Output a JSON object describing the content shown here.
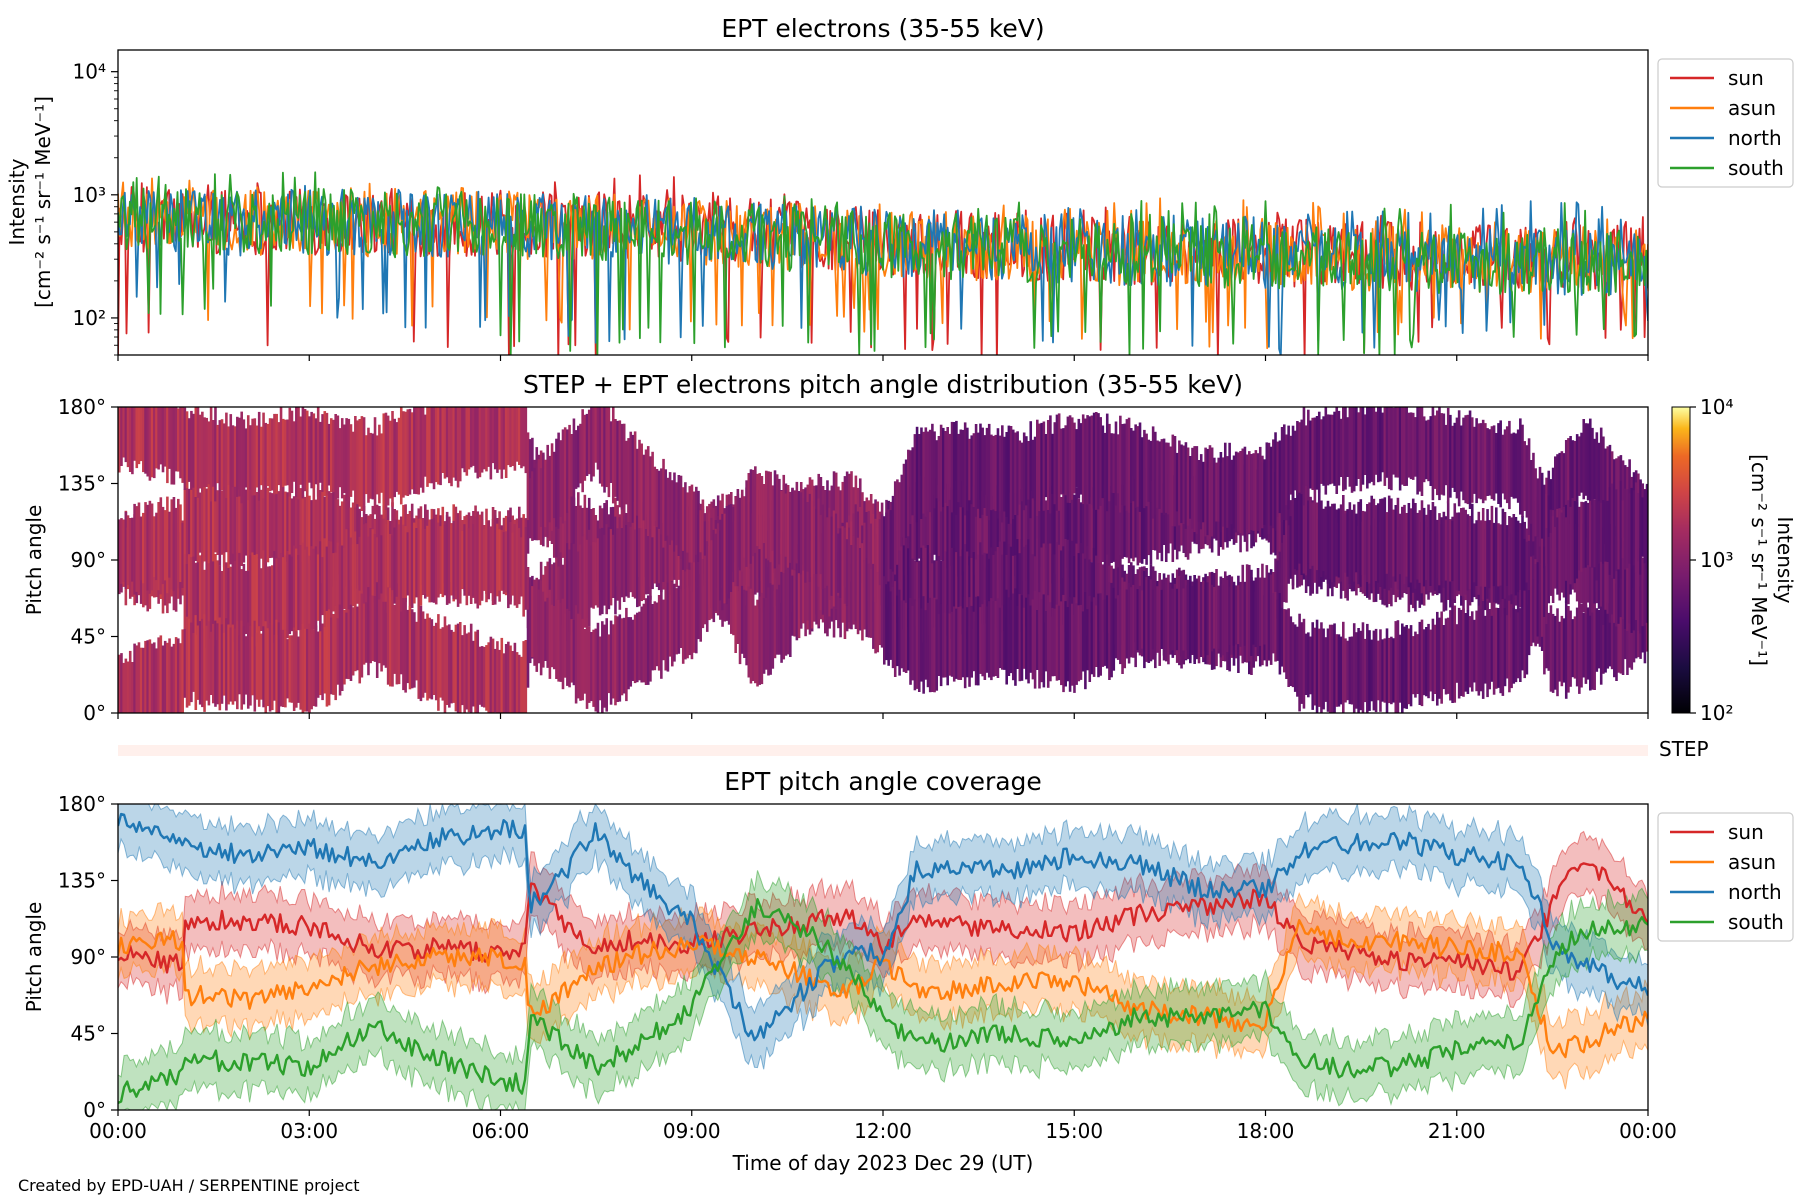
{
  "credit": "Created by EPD-UAH / SERPENTINE project",
  "colors": {
    "sun": "#d62728",
    "asun": "#ff7f0e",
    "north": "#1f77b4",
    "south": "#2ca02c",
    "step_band": "#fff0ec"
  },
  "chart_data": [
    {
      "type": "line",
      "title": "EPT electrons (35-55 keV)",
      "ylabel_lines": [
        "Intensity",
        "[cm⁻² s⁻¹ sr⁻¹ MeV⁻¹]"
      ],
      "yscale": "log",
      "ylim": [
        50,
        15000
      ],
      "yticks": [
        {
          "v": 100,
          "label": "10²"
        },
        {
          "v": 1000,
          "label": "10³"
        },
        {
          "v": 10000,
          "label": "10⁴"
        }
      ],
      "xlim_hours": [
        0,
        24
      ],
      "legend": "outside-right",
      "series": [
        {
          "name": "sun",
          "color": "#d62728",
          "x_hours": [
            0,
            2,
            4,
            6,
            8,
            10,
            12,
            14,
            16,
            18,
            20,
            22,
            24
          ],
          "typical": [
            650,
            620,
            600,
            580,
            560,
            500,
            420,
            380,
            350,
            340,
            320,
            310,
            300
          ],
          "min": [
            60,
            60,
            60,
            50,
            50,
            60,
            70,
            50,
            50,
            50,
            60,
            60,
            60
          ],
          "max": [
            1300,
            1300,
            1200,
            1200,
            1600,
            1200,
            900,
            800,
            900,
            800,
            700,
            700,
            700
          ]
        },
        {
          "name": "asun",
          "color": "#ff7f0e",
          "x_hours": [
            0,
            2,
            4,
            6,
            8,
            10,
            12,
            14,
            16,
            18,
            20,
            22,
            24
          ],
          "typical": [
            640,
            600,
            590,
            570,
            540,
            480,
            410,
            370,
            340,
            330,
            310,
            300,
            290
          ],
          "min": [
            100,
            100,
            100,
            80,
            70,
            80,
            90,
            70,
            70,
            70,
            80,
            80,
            80
          ],
          "max": [
            1400,
            1300,
            1300,
            1100,
            1000,
            900,
            900,
            900,
            1000,
            900,
            800,
            800,
            800
          ]
        },
        {
          "name": "north",
          "color": "#1f77b4",
          "x_hours": [
            0,
            2,
            4,
            6,
            8,
            10,
            12,
            14,
            16,
            18,
            20,
            22,
            24
          ],
          "typical": [
            620,
            600,
            580,
            560,
            540,
            470,
            400,
            360,
            340,
            320,
            300,
            290,
            280
          ],
          "min": [
            150,
            150,
            100,
            80,
            70,
            80,
            70,
            60,
            70,
            60,
            70,
            70,
            70
          ],
          "max": [
            1300,
            1200,
            1200,
            1100,
            1000,
            1000,
            800,
            800,
            800,
            800,
            900,
            900,
            900
          ]
        },
        {
          "name": "south",
          "color": "#2ca02c",
          "x_hours": [
            0,
            2,
            4,
            6,
            8,
            10,
            12,
            14,
            16,
            18,
            20,
            22,
            24
          ],
          "typical": [
            630,
            610,
            590,
            560,
            540,
            470,
            400,
            360,
            340,
            320,
            300,
            290,
            280
          ],
          "min": [
            120,
            130,
            100,
            60,
            60,
            70,
            60,
            60,
            60,
            60,
            60,
            60,
            60
          ],
          "max": [
            1400,
            1800,
            1400,
            1200,
            1100,
            1000,
            900,
            900,
            900,
            900,
            900,
            900,
            900
          ]
        }
      ]
    },
    {
      "type": "heatmap",
      "title": "STEP + EPT electrons pitch angle distribution (35-55 keV)",
      "ylabel": "Pitch angle",
      "ylim": [
        0,
        180
      ],
      "yticks": [
        "0°",
        "45°",
        "90°",
        "135°",
        "180°"
      ],
      "colorbar": {
        "label_lines": [
          "Intensity",
          "[cm⁻² s⁻¹ sr⁻¹ MeV⁻¹]"
        ],
        "scale": "log",
        "range": [
          100,
          10000
        ],
        "ticks": [
          "10²",
          "10³",
          "10⁴"
        ],
        "colormap": "inferno"
      },
      "row_label": "STEP"
    },
    {
      "type": "line",
      "title": "EPT pitch angle coverage",
      "ylabel": "Pitch angle",
      "xlabel": "Time of day 2023 Dec 29 (UT)",
      "ylim": [
        0,
        180
      ],
      "yticks": [
        "0°",
        "45°",
        "90°",
        "135°",
        "180°"
      ],
      "xticks": [
        "00:00",
        "03:00",
        "06:00",
        "09:00",
        "12:00",
        "15:00",
        "18:00",
        "21:00",
        "00:00"
      ],
      "legend": "outside-right",
      "series": [
        {
          "name": "sun",
          "color": "#d62728",
          "x_hours": [
            0,
            1,
            1.05,
            2,
            3,
            4,
            5,
            6,
            6.4,
            6.45,
            7,
            7.5,
            8,
            9,
            10,
            11,
            11.5,
            12,
            12.5,
            13,
            14,
            15,
            16,
            17,
            18,
            18.5,
            19,
            20,
            21,
            22,
            22.5,
            23,
            24
          ],
          "y": [
            92,
            85,
            112,
            112,
            108,
            95,
            95,
            92,
            95,
            135,
            110,
            95,
            100,
            98,
            105,
            112,
            115,
            95,
            112,
            110,
            105,
            105,
            115,
            120,
            125,
            100,
            95,
            88,
            88,
            80,
            120,
            150,
            110
          ]
        },
        {
          "name": "asun",
          "color": "#ff7f0e",
          "x_hours": [
            0,
            1,
            1.05,
            2,
            3,
            4,
            5,
            6,
            6.4,
            6.45,
            7,
            7.5,
            8,
            9,
            10,
            11,
            11.5,
            12,
            12.5,
            13,
            14,
            15,
            16,
            17,
            18,
            18.5,
            19,
            20,
            21,
            22,
            22.5,
            23,
            24
          ],
          "y": [
            95,
            100,
            68,
            65,
            72,
            85,
            90,
            90,
            85,
            55,
            70,
            82,
            90,
            98,
            90,
            75,
            70,
            88,
            70,
            70,
            75,
            75,
            60,
            55,
            50,
            110,
            100,
            100,
            95,
            92,
            35,
            40,
            55
          ]
        },
        {
          "name": "north",
          "color": "#1f77b4",
          "x_hours": [
            0,
            1,
            1.05,
            2,
            3,
            4,
            5,
            6,
            6.4,
            6.45,
            7,
            7.5,
            8,
            9,
            10,
            11,
            11.5,
            12,
            12.5,
            13,
            14,
            15,
            16,
            17,
            18,
            18.5,
            19,
            20,
            21,
            22,
            22.5,
            23,
            24
          ],
          "y": [
            170,
            160,
            155,
            150,
            155,
            145,
            160,
            165,
            165,
            120,
            140,
            165,
            140,
            110,
            40,
            80,
            95,
            90,
            140,
            145,
            140,
            150,
            145,
            130,
            130,
            150,
            155,
            160,
            150,
            145,
            100,
            85,
            70
          ]
        },
        {
          "name": "south",
          "color": "#2ca02c",
          "x_hours": [
            0,
            1,
            1.05,
            2,
            3,
            4,
            5,
            6,
            6.4,
            6.45,
            7,
            7.5,
            8,
            9,
            10,
            11,
            11.5,
            12,
            12.5,
            13,
            14,
            15,
            16,
            17,
            18,
            18.5,
            19,
            20,
            21,
            22,
            22.5,
            23,
            24
          ],
          "y": [
            10,
            20,
            30,
            28,
            25,
            50,
            30,
            18,
            15,
            55,
            40,
            25,
            35,
            60,
            120,
            100,
            80,
            55,
            40,
            40,
            45,
            40,
            55,
            55,
            60,
            30,
            25,
            25,
            35,
            40,
            90,
            105,
            110
          ]
        }
      ]
    }
  ]
}
